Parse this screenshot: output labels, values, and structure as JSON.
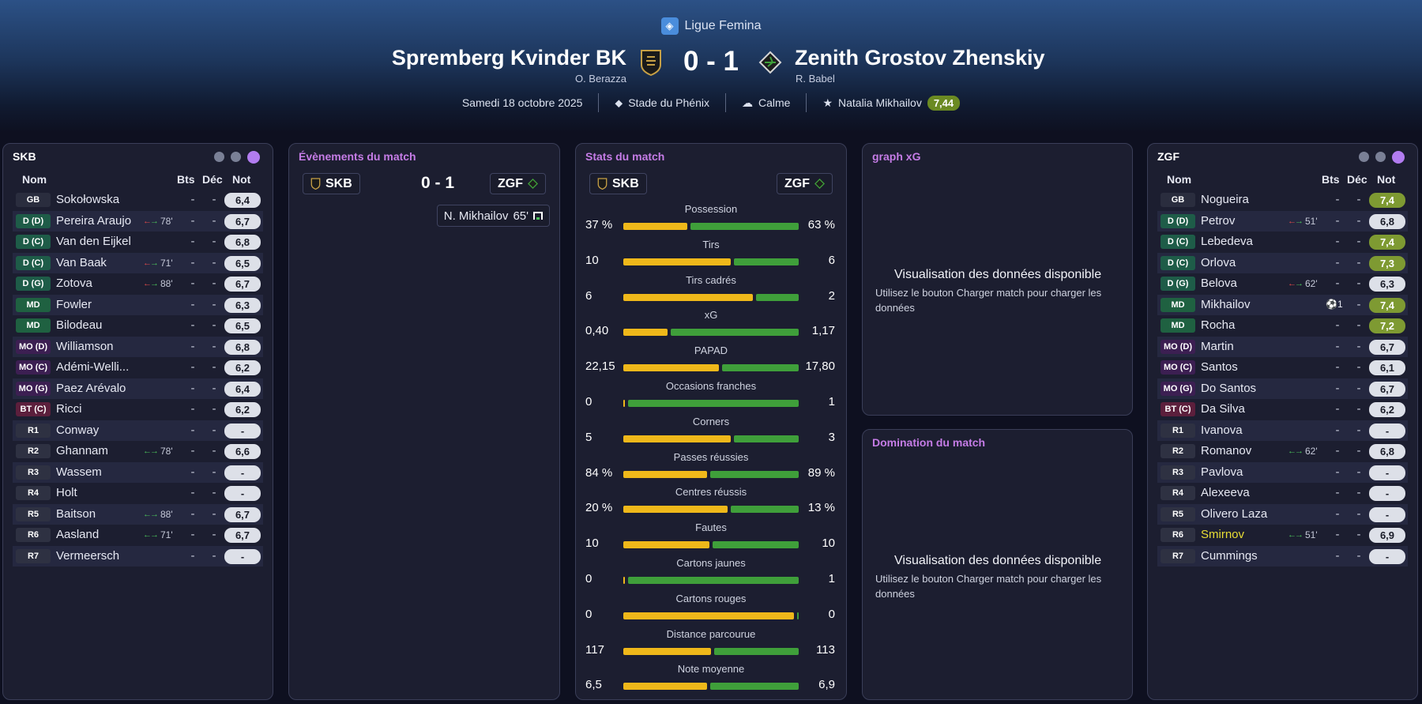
{
  "header": {
    "league": "Ligue Femina",
    "home": {
      "name": "Spremberg Kvinder BK",
      "coach": "O. Berazza"
    },
    "away": {
      "name": "Zenith Grostov Zhenskiy",
      "coach": "R. Babel"
    },
    "score": "0 - 1",
    "date": "Samedi 18 octobre 2025",
    "stadium": "Stade du Phénix",
    "weather": "Calme",
    "player_of_match": "Natalia Mikhailov",
    "player_of_match_rating": "7,44"
  },
  "colors": {
    "home_bar": "#efb81a",
    "away_bar": "#3f9f3a",
    "accent_title": "#c57ce6",
    "good_rating": "#7e9a32"
  },
  "home_lineup": {
    "title": "SKB",
    "cols": {
      "name": "Nom",
      "goals": "Bts",
      "dec": "Déc",
      "note": "Not"
    },
    "players": [
      {
        "pos": "GB",
        "type": "gk",
        "name": "Sokołowska",
        "bts": "-",
        "dec": "-",
        "note": "6,4"
      },
      {
        "pos": "D (D)",
        "type": "def",
        "name": "Pereira Araujo",
        "sub": "78'",
        "bts": "-",
        "dec": "-",
        "note": "6,7"
      },
      {
        "pos": "D (C)",
        "type": "def",
        "name": "Van den Eijkel",
        "bts": "-",
        "dec": "-",
        "note": "6,8"
      },
      {
        "pos": "D (C)",
        "type": "def",
        "name": "Van Baak",
        "sub": "71'",
        "bts": "-",
        "dec": "-",
        "note": "6,5"
      },
      {
        "pos": "D (G)",
        "type": "def",
        "name": "Zotova",
        "sub": "88'",
        "bts": "-",
        "dec": "-",
        "note": "6,7"
      },
      {
        "pos": "MD",
        "type": "mid",
        "name": "Fowler",
        "bts": "-",
        "dec": "-",
        "note": "6,3"
      },
      {
        "pos": "MD",
        "type": "mid",
        "name": "Bilodeau",
        "bts": "-",
        "dec": "-",
        "note": "6,5"
      },
      {
        "pos": "MO (D)",
        "type": "am",
        "name": "Williamson",
        "bts": "-",
        "dec": "-",
        "note": "6,8"
      },
      {
        "pos": "MO (C)",
        "type": "am",
        "name": "Adémi-Welli...",
        "bts": "-",
        "dec": "-",
        "note": "6,2"
      },
      {
        "pos": "MO (G)",
        "type": "am",
        "name": "Paez Arévalo",
        "bts": "-",
        "dec": "-",
        "note": "6,4"
      },
      {
        "pos": "BT (C)",
        "type": "fw",
        "name": "Ricci",
        "bts": "-",
        "dec": "-",
        "note": "6,2"
      },
      {
        "pos": "R1",
        "type": "sub",
        "name": "Conway",
        "bts": "-",
        "dec": "-",
        "note": "-"
      },
      {
        "pos": "R2",
        "type": "sub",
        "name": "Ghannam",
        "subin": "78'",
        "bts": "-",
        "dec": "-",
        "note": "6,6"
      },
      {
        "pos": "R3",
        "type": "sub",
        "name": "Wassem",
        "bts": "-",
        "dec": "-",
        "note": "-"
      },
      {
        "pos": "R4",
        "type": "sub",
        "name": "Holt",
        "bts": "-",
        "dec": "-",
        "note": "-"
      },
      {
        "pos": "R5",
        "type": "sub",
        "name": "Baitson",
        "subin": "88'",
        "bts": "-",
        "dec": "-",
        "note": "6,7"
      },
      {
        "pos": "R6",
        "type": "sub",
        "name": "Aasland",
        "subin": "71'",
        "bts": "-",
        "dec": "-",
        "note": "6,7"
      },
      {
        "pos": "R7",
        "type": "sub",
        "name": "Vermeersch",
        "bts": "-",
        "dec": "-",
        "note": "-"
      }
    ]
  },
  "away_lineup": {
    "title": "ZGF",
    "cols": {
      "name": "Nom",
      "goals": "Bts",
      "dec": "Déc",
      "note": "Not"
    },
    "players": [
      {
        "pos": "GB",
        "type": "gk",
        "name": "Nogueira",
        "bts": "-",
        "dec": "-",
        "note": "7,4",
        "green": true
      },
      {
        "pos": "D (D)",
        "type": "def",
        "name": "Petrov",
        "sub": "51'",
        "bts": "-",
        "dec": "-",
        "note": "6,8"
      },
      {
        "pos": "D (C)",
        "type": "def",
        "name": "Lebedeva",
        "bts": "-",
        "dec": "-",
        "note": "7,4",
        "green": true
      },
      {
        "pos": "D (C)",
        "type": "def",
        "name": "Orlova",
        "bts": "-",
        "dec": "-",
        "note": "7,3",
        "green": true
      },
      {
        "pos": "D (G)",
        "type": "def",
        "name": "Belova",
        "sub": "62'",
        "bts": "-",
        "dec": "-",
        "note": "6,3"
      },
      {
        "pos": "MD",
        "type": "mid",
        "name": "Mikhailov",
        "goal": "⚽1",
        "bts": "",
        "dec": "-",
        "note": "7,4",
        "green": true
      },
      {
        "pos": "MD",
        "type": "mid",
        "name": "Rocha",
        "bts": "-",
        "dec": "-",
        "note": "7,2",
        "green": true
      },
      {
        "pos": "MO (D)",
        "type": "am",
        "name": "Martin",
        "bts": "-",
        "dec": "-",
        "note": "6,7"
      },
      {
        "pos": "MO (C)",
        "type": "am",
        "name": "Santos",
        "bts": "-",
        "dec": "-",
        "note": "6,1"
      },
      {
        "pos": "MO (G)",
        "type": "am",
        "name": "Do Santos",
        "bts": "-",
        "dec": "-",
        "note": "6,7"
      },
      {
        "pos": "BT (C)",
        "type": "fw",
        "name": "Da Silva",
        "bts": "-",
        "dec": "-",
        "note": "6,2"
      },
      {
        "pos": "R1",
        "type": "sub",
        "name": "Ivanova",
        "bts": "-",
        "dec": "-",
        "note": "-"
      },
      {
        "pos": "R2",
        "type": "sub",
        "name": "Romanov",
        "subin": "62'",
        "bts": "-",
        "dec": "-",
        "note": "6,8"
      },
      {
        "pos": "R3",
        "type": "sub",
        "name": "Pavlova",
        "bts": "-",
        "dec": "-",
        "note": "-"
      },
      {
        "pos": "R4",
        "type": "sub",
        "name": "Alexeeva",
        "bts": "-",
        "dec": "-",
        "note": "-"
      },
      {
        "pos": "R5",
        "type": "sub",
        "name": "Olivero Laza",
        "bts": "-",
        "dec": "-",
        "note": "-"
      },
      {
        "pos": "R6",
        "type": "sub",
        "name": "Smirnov",
        "subin": "51'",
        "bts": "-",
        "dec": "-",
        "note": "6,9",
        "yellow": true
      },
      {
        "pos": "R7",
        "type": "sub",
        "name": "Cummings",
        "bts": "-",
        "dec": "-",
        "note": "-"
      }
    ]
  },
  "events": {
    "title": "Évènements du match",
    "home_abbr": "SKB",
    "away_abbr": "ZGF",
    "score": "0 - 1",
    "goal": {
      "player": "N. Mikhailov",
      "minute": "65'"
    }
  },
  "stats": {
    "title": "Stats du match",
    "home_abbr": "SKB",
    "away_abbr": "ZGF",
    "rows": [
      {
        "label": "Possession",
        "home": "37 %",
        "away": "63 %",
        "hf": 0.37
      },
      {
        "label": "Tirs",
        "home": "10",
        "away": "6",
        "hf": 0.625
      },
      {
        "label": "Tirs cadrés",
        "home": "6",
        "away": "2",
        "hf": 0.75
      },
      {
        "label": "xG",
        "home": "0,40",
        "away": "1,17",
        "hf": 0.255
      },
      {
        "label": "PAPAD",
        "home": "22,15",
        "away": "17,80",
        "hf": 0.554
      },
      {
        "label": "Occasions franches",
        "home": "0",
        "away": "1",
        "hf": 0.0
      },
      {
        "label": "Corners",
        "home": "5",
        "away": "3",
        "hf": 0.625
      },
      {
        "label": "Passes réussies",
        "home": "84 %",
        "away": "89 %",
        "hf": 0.485
      },
      {
        "label": "Centres réussis",
        "home": "20 %",
        "away": "13 %",
        "hf": 0.606
      },
      {
        "label": "Fautes",
        "home": "10",
        "away": "10",
        "hf": 0.5
      },
      {
        "label": "Cartons jaunes",
        "home": "0",
        "away": "1",
        "hf": 0.0
      },
      {
        "label": "Cartons rouges",
        "home": "0",
        "away": "0",
        "hf": 1.0
      },
      {
        "label": "Distance parcourue",
        "home": "117",
        "away": "113",
        "hf": 0.509
      },
      {
        "label": "Note moyenne",
        "home": "6,5",
        "away": "6,9",
        "hf": 0.485
      }
    ]
  },
  "xg_panel": {
    "title": "graph xG",
    "message": "Visualisation des données disponible",
    "hint": "Utilisez le bouton Charger match pour charger les données"
  },
  "domination_panel": {
    "title": "Domination du match",
    "message": "Visualisation des données disponible",
    "hint": "Utilisez le bouton Charger match pour charger les données"
  }
}
